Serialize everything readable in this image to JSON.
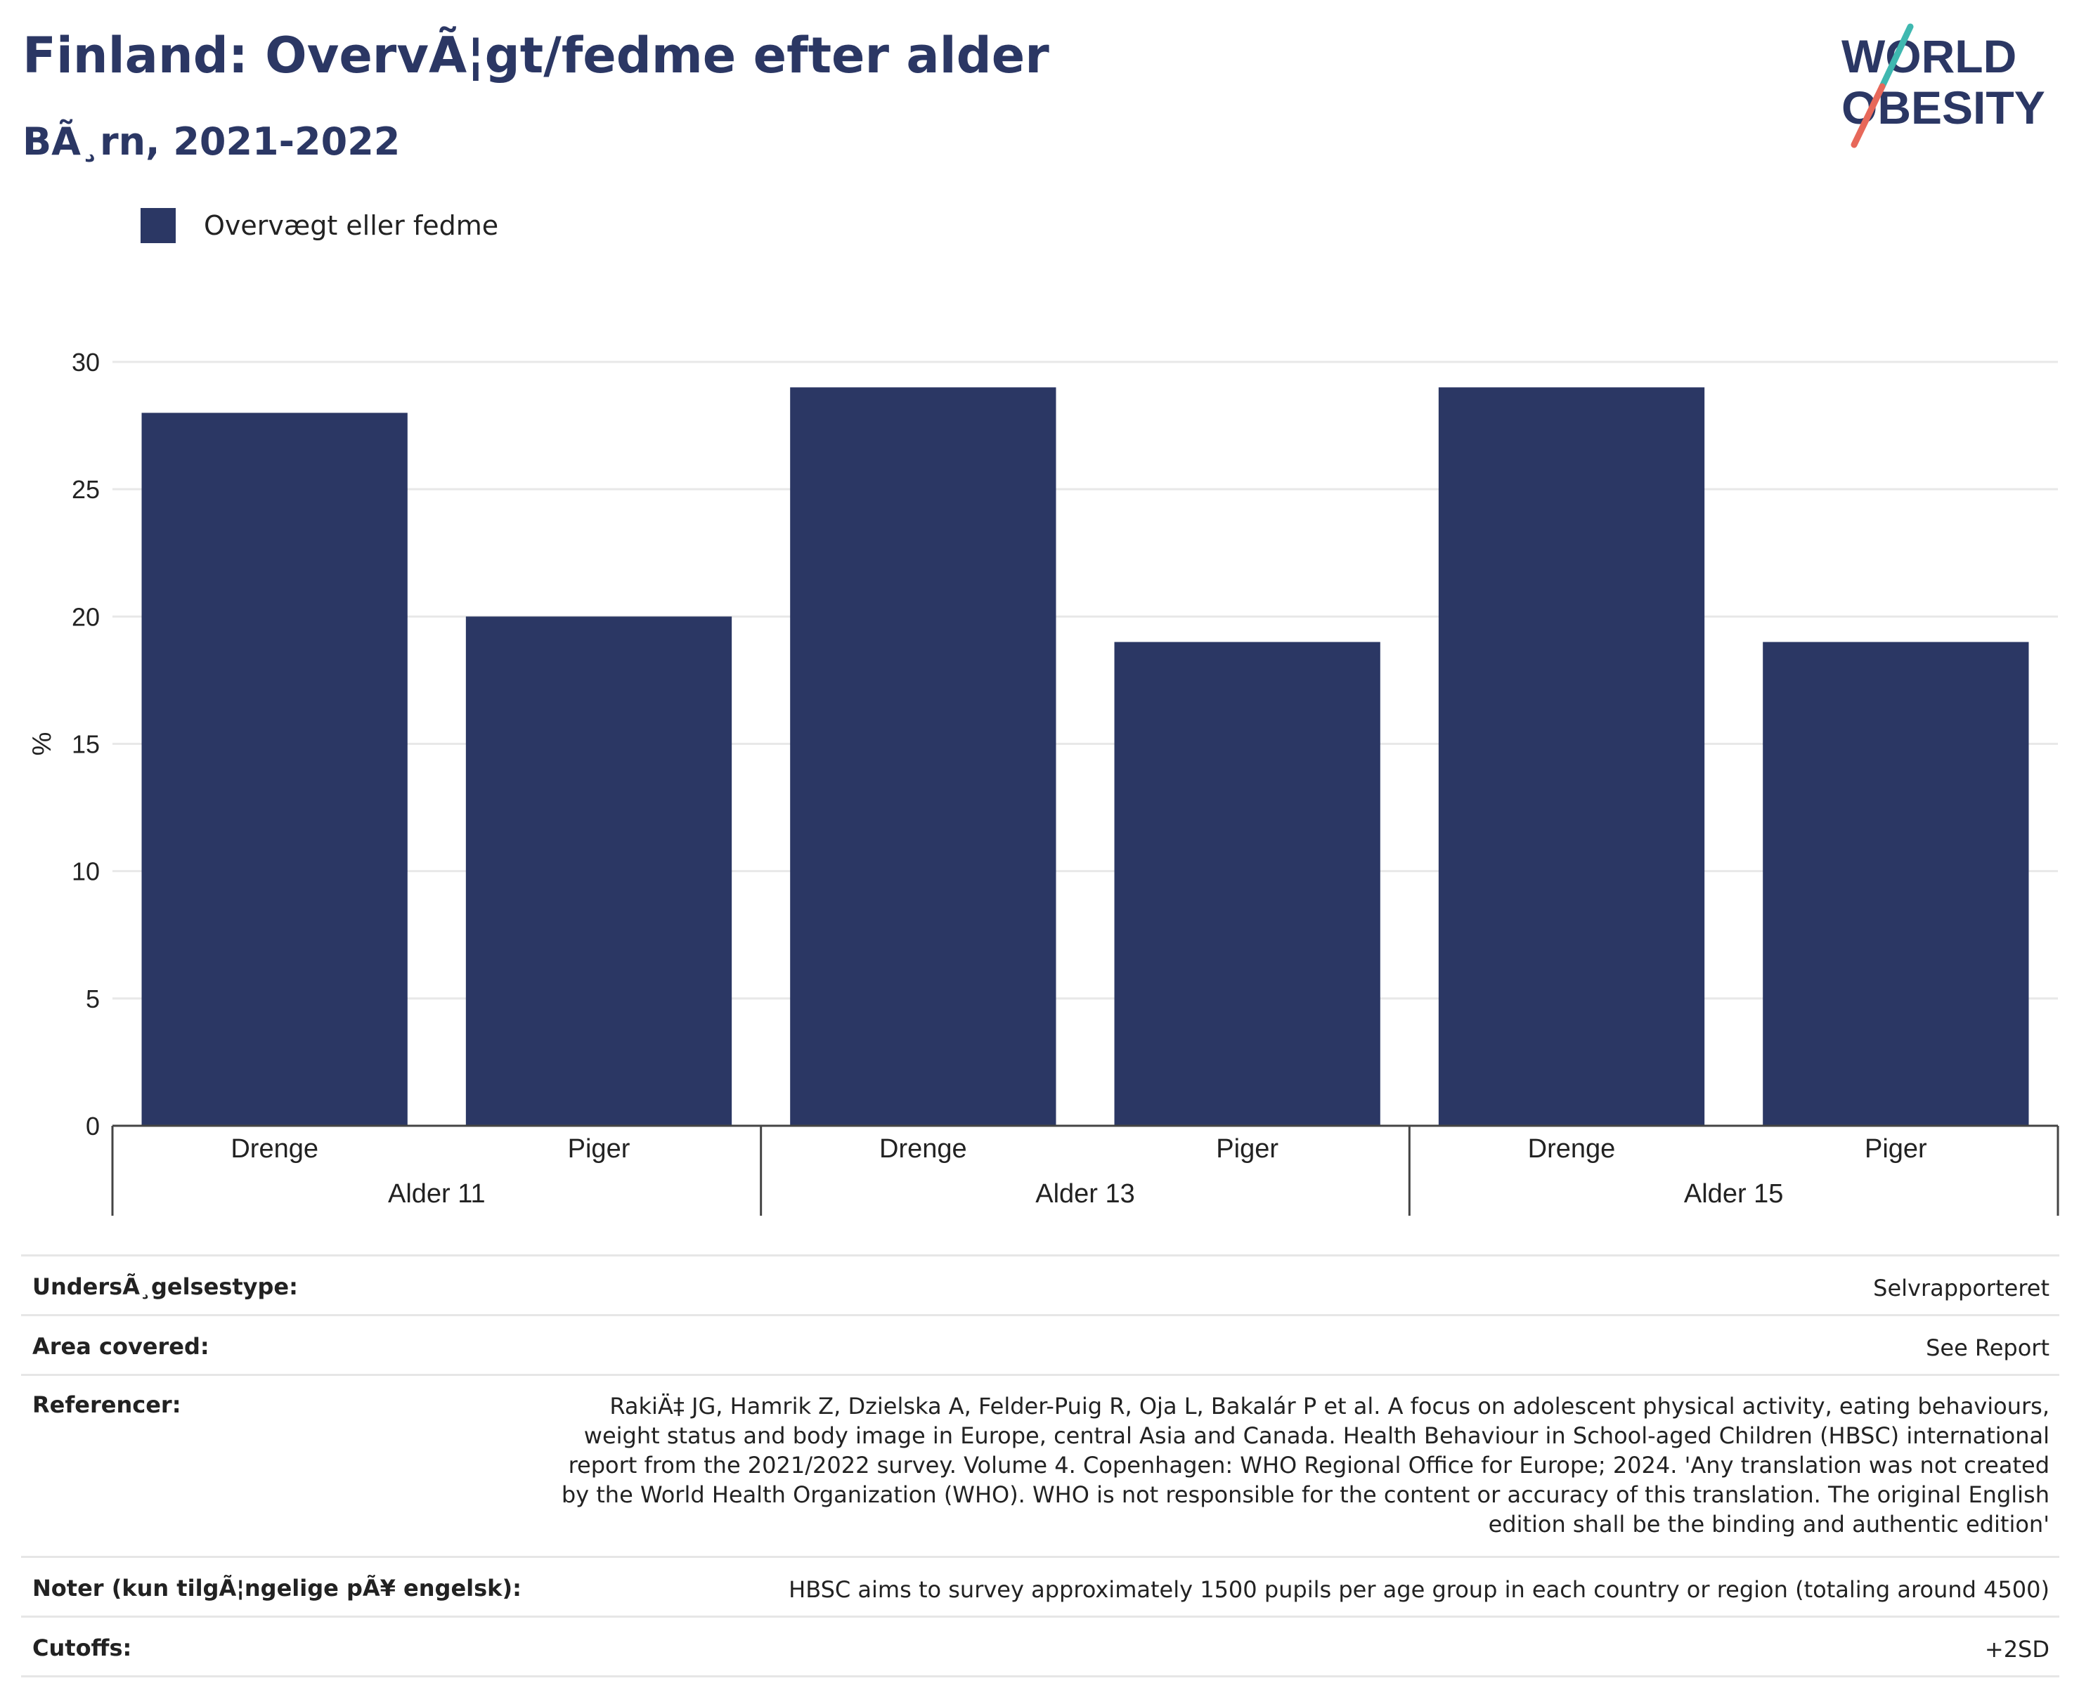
{
  "header": {
    "title": "Finland: OvervÃ¦gt/fedme efter alder",
    "subtitle": "BÃ¸rn, 2021-2022"
  },
  "logo": {
    "line1": "WORLD",
    "line2": "OBESITY",
    "text_color": "#2b3764",
    "slash_colors": [
      "#3fb8b0",
      "#e7685a"
    ]
  },
  "legend": {
    "label": "Overvægt eller fedme",
    "color": "#2b3764"
  },
  "chart_data": {
    "type": "bar",
    "ylabel": "%",
    "ylim": [
      0,
      30
    ],
    "yticks": [
      0,
      5,
      10,
      15,
      20,
      25,
      30
    ],
    "grid": true,
    "legend_position": "top-left",
    "bar_color": "#2b3764",
    "groups": [
      {
        "label": "Alder 11",
        "bars": [
          {
            "category": "Drenge",
            "value": 28
          },
          {
            "category": "Piger",
            "value": 20
          }
        ]
      },
      {
        "label": "Alder 13",
        "bars": [
          {
            "category": "Drenge",
            "value": 29
          },
          {
            "category": "Piger",
            "value": 19
          }
        ]
      },
      {
        "label": "Alder 15",
        "bars": [
          {
            "category": "Drenge",
            "value": 29
          },
          {
            "category": "Piger",
            "value": 19
          }
        ]
      }
    ],
    "series": [
      {
        "name": "Overvægt eller fedme",
        "values": [
          28,
          20,
          29,
          19,
          29,
          19
        ]
      }
    ]
  },
  "meta": {
    "survey_type": {
      "key": "UndersÃ¸gelsestype:",
      "value": "Selvrapporteret"
    },
    "area": {
      "key": "Area covered:",
      "value": "See Report"
    },
    "references": {
      "key": "Referencer:",
      "value": "RakiÄ‡ JG, Hamrik Z, Dzielska A, Felder-Puig R, Oja L, Bakalár P et al. A focus on adolescent physical activity, eating behaviours, weight status and body image in Europe, central Asia and Canada. Health Behaviour in School-aged Children (HBSC) international report from the 2021/2022 survey. Volume 4. Copenhagen: WHO Regional Office for Europe; 2024. 'Any translation was not created by the World Health Organization (WHO). WHO is not responsible for the content or accuracy of this translation. The original English edition shall be the binding and authentic edition'"
    },
    "notes": {
      "key": "Noter (kun tilgÃ¦ngelige pÃ¥ engelsk):",
      "value": "HBSC aims to survey approximately 1500 pupils per age group in each country or region (totaling around 4500)"
    },
    "cutoffs": {
      "key": "Cutoffs:",
      "value": "+2SD"
    }
  }
}
